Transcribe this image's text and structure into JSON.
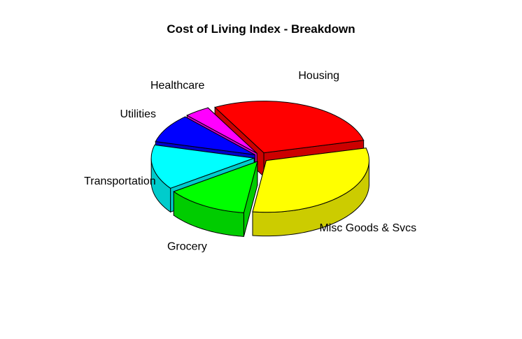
{
  "chart_data": {
    "type": "pie",
    "title": "Cost of Living Index - Breakdown",
    "labels": [
      "Housing",
      "Healthcare",
      "Utilities",
      "Transportation",
      "Grocery",
      "Misc Goods & Svcs"
    ],
    "values": [
      29,
      4,
      9,
      14,
      13,
      31
    ],
    "colors": [
      "#ff0000",
      "#ff00ff",
      "#0000ff",
      "#00ffff",
      "#00ff00",
      "#ffff00"
    ],
    "exploded": true,
    "three_d": true
  }
}
